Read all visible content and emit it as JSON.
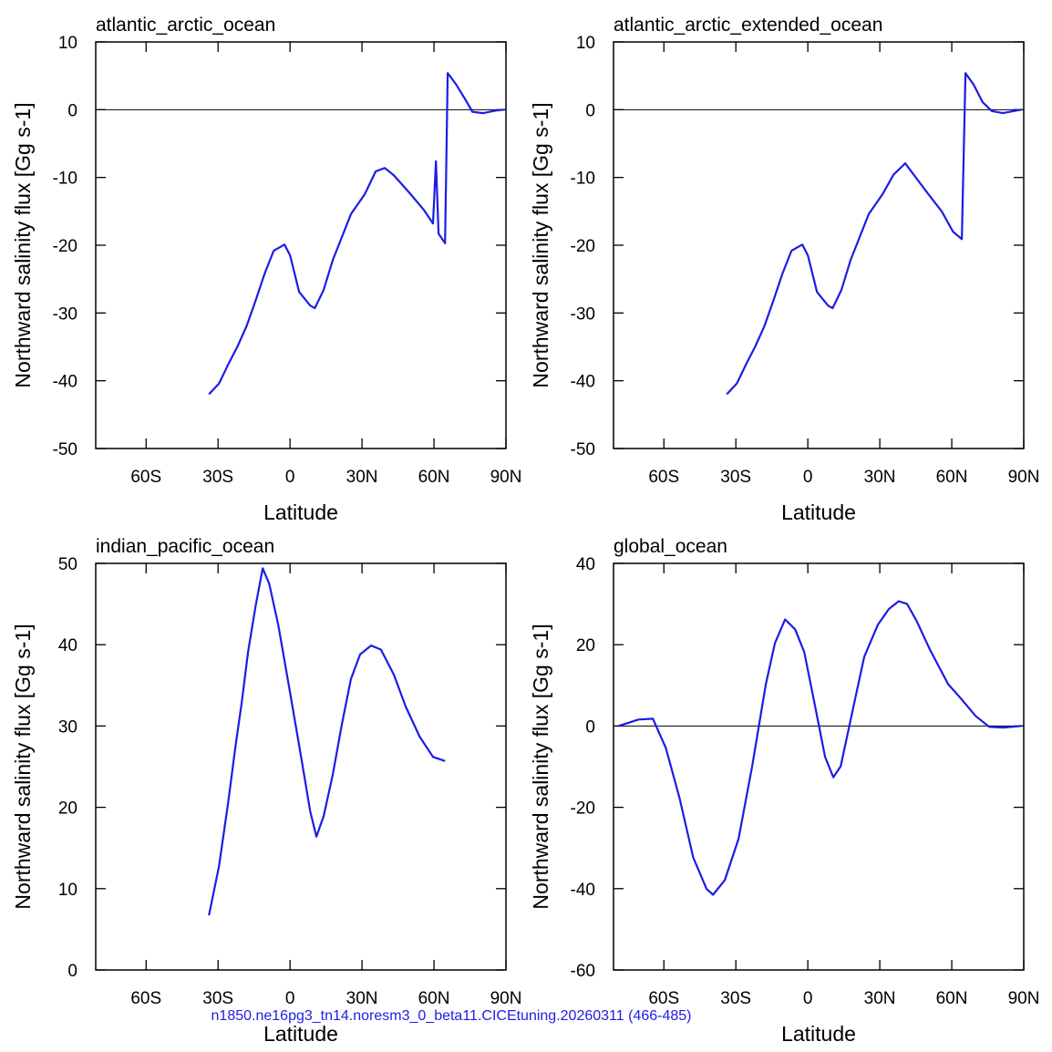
{
  "chart_data": [
    {
      "type": "line",
      "title": "atlantic_arctic_ocean",
      "x_label": "Latitude",
      "y_label": "Northward salinity flux [Gg s-1]",
      "color": "#1c1ce6",
      "hline": 0,
      "xlim": [
        -81,
        90
      ],
      "ylim": [
        -50,
        10
      ],
      "xticks": [
        {
          "value": -60,
          "label": "60S"
        },
        {
          "value": -30,
          "label": "30S"
        },
        0,
        {
          "value": 30,
          "label": "30N"
        },
        {
          "value": 60,
          "label": "60N"
        },
        {
          "value": 90,
          "label": "90N"
        }
      ],
      "yticks": [
        -50,
        -40,
        -30,
        -20,
        -10,
        0,
        10
      ],
      "x": [
        -33.8,
        -29.6,
        -25.8,
        -22,
        -18.2,
        -14.4,
        -10.6,
        -6.8,
        -2.3,
        0,
        3.8,
        8.4,
        10.3,
        14,
        17.8,
        21.6,
        25.4,
        31.1,
        35.7,
        39.5,
        43.3,
        50.1,
        55.8,
        59.6,
        60.8,
        61.9,
        64.6,
        65.7,
        69.1,
        72.9,
        76,
        80.5,
        86.2,
        89.2
      ],
      "values": [
        -42,
        -40.4,
        -37.6,
        -35,
        -32,
        -28.2,
        -24.2,
        -20.8,
        -19.9,
        -21.5,
        -26.9,
        -28.9,
        -29.3,
        -26.6,
        -22.2,
        -18.8,
        -15.4,
        -12.5,
        -9.1,
        -8.6,
        -9.7,
        -12.4,
        -14.8,
        -16.8,
        -7.6,
        -18.3,
        -19.7,
        5.4,
        3.8,
        1.6,
        -0.3,
        -0.5,
        -0.1,
        0
      ]
    },
    {
      "type": "line",
      "title": "atlantic_arctic_extended_ocean",
      "x_label": "Latitude",
      "y_label": "Northward salinity flux [Gg s-1]",
      "color": "#1c1ce6",
      "hline": 0,
      "xlim": [
        -81,
        90
      ],
      "ylim": [
        -50,
        10
      ],
      "xticks": [
        {
          "value": -60,
          "label": "60S"
        },
        {
          "value": -30,
          "label": "30S"
        },
        0,
        {
          "value": 30,
          "label": "30N"
        },
        {
          "value": 60,
          "label": "60N"
        },
        {
          "value": 90,
          "label": "90N"
        }
      ],
      "yticks": [
        -50,
        -40,
        -30,
        -20,
        -10,
        0,
        10
      ],
      "x": [
        -33.8,
        -29.6,
        -25.8,
        -22,
        -18.2,
        -14.4,
        -10.6,
        -6.8,
        -2.3,
        0,
        3.8,
        8.4,
        10.3,
        14,
        17.8,
        21.6,
        25.4,
        31.1,
        35.7,
        40.6,
        43.3,
        50.1,
        55.8,
        60.5,
        64.2,
        65.7,
        69.1,
        72.9,
        76.7,
        81.3,
        88.9
      ],
      "values": [
        -42,
        -40.4,
        -37.6,
        -35,
        -32,
        -28.2,
        -24.2,
        -20.8,
        -19.9,
        -21.5,
        -26.9,
        -28.9,
        -29.3,
        -26.6,
        -22.2,
        -18.8,
        -15.4,
        -12.5,
        -9.6,
        -7.9,
        -9.2,
        -12.4,
        -15,
        -18,
        -19.1,
        5.4,
        3.7,
        1.1,
        -0.2,
        -0.5,
        0
      ]
    },
    {
      "type": "line",
      "title": "indian_pacific_ocean",
      "x_label": "Latitude",
      "y_label": "Northward salinity flux [Gg s-1]",
      "color": "#1c1ce6",
      "xlim": [
        -81,
        90
      ],
      "ylim": [
        0,
        50
      ],
      "xticks": [
        {
          "value": -60,
          "label": "60S"
        },
        {
          "value": -30,
          "label": "30S"
        },
        0,
        {
          "value": 30,
          "label": "30N"
        },
        {
          "value": 60,
          "label": "60N"
        },
        {
          "value": 90,
          "label": "90N"
        }
      ],
      "yticks": [
        0,
        10,
        20,
        30,
        40,
        50
      ],
      "x": [
        -33.8,
        -29.6,
        -25.8,
        -22.8,
        -20.1,
        -17.5,
        -14.4,
        -11.4,
        -8.7,
        -4.9,
        0,
        4.6,
        8.4,
        11,
        14,
        17.8,
        21.6,
        25.4,
        29.2,
        33.8,
        37.9,
        43.3,
        48.2,
        54,
        59.6,
        64.6
      ],
      "values": [
        6.7,
        12.8,
        20.6,
        27.4,
        33,
        39.1,
        44.7,
        49.4,
        47.5,
        42.4,
        34.1,
        26.2,
        19.5,
        16.4,
        18.9,
        24,
        30.2,
        35.8,
        38.8,
        39.9,
        39.4,
        36.3,
        32.4,
        28.7,
        26.2,
        25.7
      ]
    },
    {
      "type": "line",
      "title": "global_ocean",
      "x_label": "Latitude",
      "y_label": "Northward salinity flux [Gg s-1]",
      "color": "#1c1ce6",
      "hline": 0,
      "xlim": [
        -81,
        90
      ],
      "ylim": [
        -60,
        40
      ],
      "xticks": [
        {
          "value": -60,
          "label": "60S"
        },
        {
          "value": -30,
          "label": "30S"
        },
        0,
        {
          "value": 30,
          "label": "30N"
        },
        {
          "value": 60,
          "label": "60N"
        },
        {
          "value": 90,
          "label": "90N"
        }
      ],
      "yticks": [
        -60,
        -40,
        -20,
        0,
        20,
        40
      ],
      "x": [
        -79,
        -70.6,
        -64.6,
        -59.2,
        -53.5,
        -47.8,
        -42.2,
        -39.5,
        -34.6,
        -28.9,
        -23.2,
        -17.5,
        -13.7,
        -9.5,
        -5.3,
        -1.5,
        2.7,
        7.2,
        10.6,
        13.7,
        18.6,
        23.5,
        29.2,
        33.8,
        37.9,
        41.4,
        45.2,
        50.9,
        58.5,
        64.2,
        69.9,
        75.6,
        81.3,
        88.9
      ],
      "values": [
        0,
        1.6,
        1.8,
        -5.4,
        -17.7,
        -32.3,
        -40.1,
        -41.5,
        -37.9,
        -27.8,
        -9.9,
        10.3,
        20.4,
        26.2,
        23.8,
        18.2,
        5.8,
        -7.6,
        -12.6,
        -9.9,
        3.6,
        17,
        24.9,
        28.8,
        30.7,
        30,
        26,
        18.8,
        10.3,
        6.5,
        2.5,
        -0.2,
        -0.4,
        0
      ]
    }
  ],
  "footer": "n1850.ne16pg3_tn14.noresm3_0_beta11.CICEtuning.20260311 (466-485)"
}
